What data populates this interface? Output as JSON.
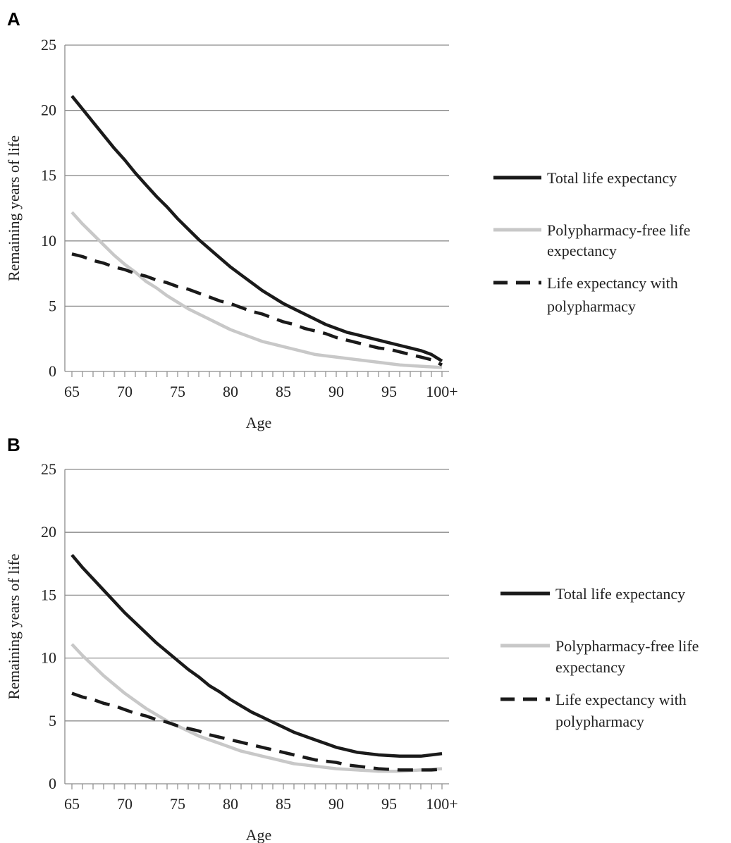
{
  "chart_data": [
    {
      "panel": "A",
      "type": "line",
      "xlabel": "Age",
      "ylabel": "Remaining years of life",
      "ylim": [
        0,
        25
      ],
      "yticks": [
        0,
        5,
        10,
        15,
        20,
        25
      ],
      "x": [
        65,
        66,
        67,
        68,
        69,
        70,
        71,
        72,
        73,
        74,
        75,
        76,
        77,
        78,
        79,
        80,
        81,
        82,
        83,
        84,
        85,
        86,
        87,
        88,
        89,
        90,
        91,
        92,
        93,
        94,
        95,
        96,
        97,
        98,
        99,
        100
      ],
      "xticks": [
        65,
        70,
        75,
        80,
        85,
        90,
        95,
        100
      ],
      "xtick_labels": [
        "65",
        "70",
        "75",
        "80",
        "85",
        "90",
        "95",
        "100+"
      ],
      "grid": "horizontal",
      "legend_position": "right",
      "series": [
        {
          "name": "Total life expectancy",
          "style": "solid",
          "color": "#1a1a1a",
          "values": [
            21.1,
            20.1,
            19.1,
            18.1,
            17.1,
            16.2,
            15.2,
            14.3,
            13.4,
            12.6,
            11.7,
            10.9,
            10.1,
            9.4,
            8.7,
            8.0,
            7.4,
            6.8,
            6.2,
            5.7,
            5.2,
            4.8,
            4.4,
            4.0,
            3.6,
            3.3,
            3.0,
            2.8,
            2.6,
            2.4,
            2.2,
            2.0,
            1.8,
            1.6,
            1.3,
            0.8
          ]
        },
        {
          "name": "Polypharmacy-free life expectancy",
          "style": "solid",
          "color": "#c8c8c8",
          "values": [
            12.2,
            11.3,
            10.5,
            9.7,
            8.9,
            8.2,
            7.6,
            6.9,
            6.4,
            5.8,
            5.3,
            4.8,
            4.4,
            4.0,
            3.6,
            3.2,
            2.9,
            2.6,
            2.3,
            2.1,
            1.9,
            1.7,
            1.5,
            1.3,
            1.2,
            1.1,
            1.0,
            0.9,
            0.8,
            0.7,
            0.6,
            0.5,
            0.45,
            0.4,
            0.35,
            0.3
          ]
        },
        {
          "name": "Life expectancy with polypharmacy",
          "style": "dashed",
          "color": "#1a1a1a",
          "values": [
            9.0,
            8.8,
            8.5,
            8.3,
            8.0,
            7.8,
            7.5,
            7.3,
            7.0,
            6.8,
            6.5,
            6.3,
            6.0,
            5.7,
            5.4,
            5.2,
            4.9,
            4.6,
            4.4,
            4.1,
            3.8,
            3.6,
            3.3,
            3.1,
            2.9,
            2.6,
            2.4,
            2.2,
            2.0,
            1.8,
            1.7,
            1.5,
            1.3,
            1.1,
            0.9,
            0.5
          ]
        }
      ]
    },
    {
      "panel": "B",
      "type": "line",
      "xlabel": "Age",
      "ylabel": "Remaining years of life",
      "ylim": [
        0,
        25
      ],
      "yticks": [
        0,
        5,
        10,
        15,
        20,
        25
      ],
      "x": [
        65,
        66,
        67,
        68,
        69,
        70,
        71,
        72,
        73,
        74,
        75,
        76,
        77,
        78,
        79,
        80,
        81,
        82,
        83,
        84,
        85,
        86,
        87,
        88,
        89,
        90,
        91,
        92,
        93,
        94,
        95,
        96,
        97,
        98,
        99,
        100
      ],
      "xticks": [
        65,
        70,
        75,
        80,
        85,
        90,
        95,
        100
      ],
      "xtick_labels": [
        "65",
        "70",
        "75",
        "80",
        "85",
        "90",
        "95",
        "100+"
      ],
      "grid": "horizontal",
      "legend_position": "right",
      "series": [
        {
          "name": "Total life expectancy",
          "style": "solid",
          "color": "#1a1a1a",
          "values": [
            18.2,
            17.2,
            16.3,
            15.4,
            14.5,
            13.6,
            12.8,
            12.0,
            11.2,
            10.5,
            9.8,
            9.1,
            8.5,
            7.8,
            7.3,
            6.7,
            6.2,
            5.7,
            5.3,
            4.9,
            4.5,
            4.1,
            3.8,
            3.5,
            3.2,
            2.9,
            2.7,
            2.5,
            2.4,
            2.3,
            2.25,
            2.2,
            2.2,
            2.2,
            2.3,
            2.4
          ]
        },
        {
          "name": "Polypharmacy-free life expectancy",
          "style": "solid",
          "color": "#c8c8c8",
          "values": [
            11.1,
            10.2,
            9.4,
            8.6,
            7.9,
            7.2,
            6.6,
            6.0,
            5.5,
            5.0,
            4.6,
            4.2,
            3.8,
            3.5,
            3.2,
            2.9,
            2.6,
            2.4,
            2.2,
            2.0,
            1.8,
            1.6,
            1.5,
            1.4,
            1.3,
            1.2,
            1.15,
            1.1,
            1.05,
            1.0,
            1.0,
            1.0,
            1.05,
            1.1,
            1.15,
            1.2
          ]
        },
        {
          "name": "Life expectancy with polypharmacy",
          "style": "dashed",
          "color": "#1a1a1a",
          "values": [
            7.2,
            6.9,
            6.7,
            6.4,
            6.2,
            5.9,
            5.6,
            5.4,
            5.1,
            4.9,
            4.6,
            4.4,
            4.2,
            3.9,
            3.7,
            3.5,
            3.3,
            3.1,
            2.9,
            2.7,
            2.5,
            2.3,
            2.1,
            1.9,
            1.8,
            1.7,
            1.5,
            1.4,
            1.3,
            1.2,
            1.15,
            1.1,
            1.1,
            1.1,
            1.1,
            1.15
          ]
        }
      ]
    }
  ]
}
